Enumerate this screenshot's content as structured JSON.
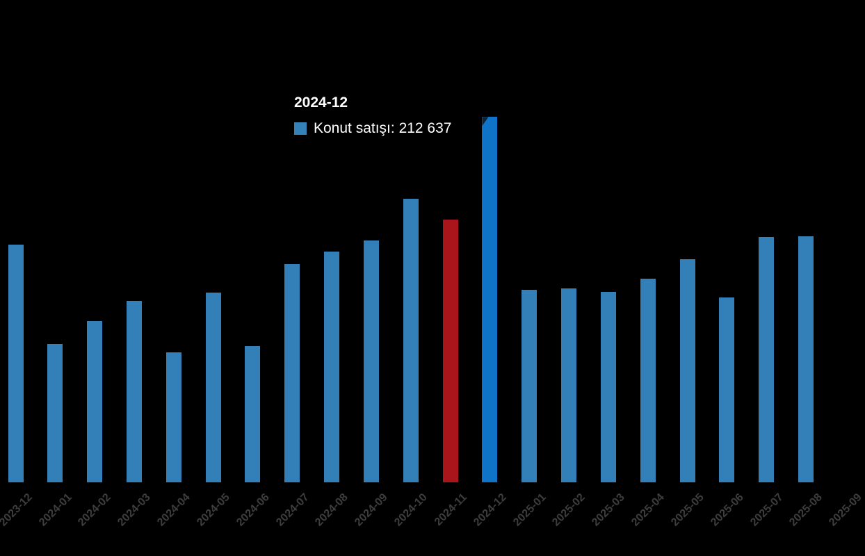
{
  "tooltip": {
    "title": "2024-12",
    "series_label": "Konut satışı",
    "value": "212 637",
    "text": "Konut satışı: 212 637"
  },
  "chart_data": {
    "type": "bar",
    "title": "",
    "xlabel": "",
    "ylabel": "",
    "series_name": "Konut satışı",
    "grid": false,
    "legend_position": "tooltip",
    "background_color": "#000000",
    "bar_color": "#3380b9",
    "highlight_color": "#0f74c7",
    "highlight_category": "2024-12",
    "red_color": "#aa151c",
    "red_category": "2024-11",
    "axis_label_color": "#3d3d3d",
    "label_rotation_deg": 45,
    "categories": [
      "2023-12",
      "2024-01",
      "2024-02",
      "2024-03",
      "2024-04",
      "2024-05",
      "2024-06",
      "2024-07",
      "2024-08",
      "2024-09",
      "2024-10",
      "2024-11",
      "2024-12",
      "2025-01",
      "2025-02",
      "2025-03",
      "2025-04",
      "2025-05",
      "2025-06",
      "2025-07",
      "2025-08",
      "2025-09"
    ],
    "values": [
      138300,
      80308,
      93902,
      105394,
      75569,
      110588,
      79313,
      127088,
      134155,
      140919,
      165138,
      153014,
      212637,
      112173,
      112818,
      110795,
      118359,
      130025,
      107723,
      142858,
      143319,
      null
    ]
  }
}
